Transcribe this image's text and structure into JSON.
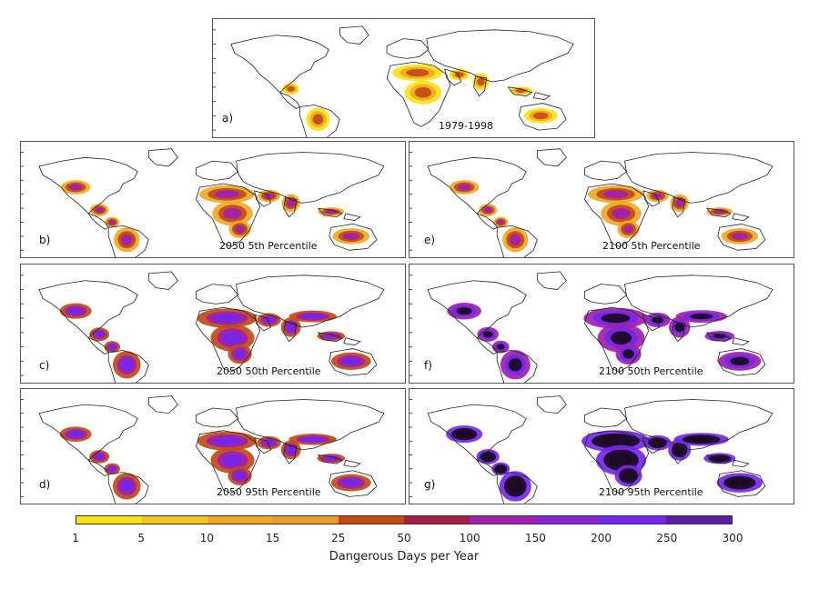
{
  "panels": [
    {
      "letter": "a)",
      "title": "1979-1998",
      "level": 1
    },
    {
      "letter": "b)",
      "title": "2050 5th Percentile",
      "level": 2
    },
    {
      "letter": "e)",
      "title": "2100 5th Percentile",
      "level": 2
    },
    {
      "letter": "c)",
      "title": "2050 50th Percentile",
      "level": 3
    },
    {
      "letter": "f)",
      "title": "2100 50th Percentile",
      "level": 4
    },
    {
      "letter": "d)",
      "title": "2050 95th Percentile",
      "level": 3
    },
    {
      "letter": "g)",
      "title": "2100 95th Percentile",
      "level": 5
    }
  ],
  "colorbar": {
    "ticks": [
      "1",
      "5",
      "10",
      "15",
      "25",
      "50",
      "100",
      "150",
      "200",
      "250",
      "300"
    ],
    "colors": [
      "#f7e316",
      "#f5c41e",
      "#f0a824",
      "#ec9a26",
      "#c24a12",
      "#a81e4a",
      "#9e1fb0",
      "#8a22d6",
      "#7427e8",
      "#5a1fa0"
    ],
    "label": "Dangerous Days per Year"
  },
  "palette": {
    "coast": "#222222",
    "low": "#f7e316",
    "mid_low": "#f0a824",
    "mid": "#c24a12",
    "high": "#9e1fb0",
    "very_high": "#7427e8",
    "extreme": "#1a0a22"
  }
}
